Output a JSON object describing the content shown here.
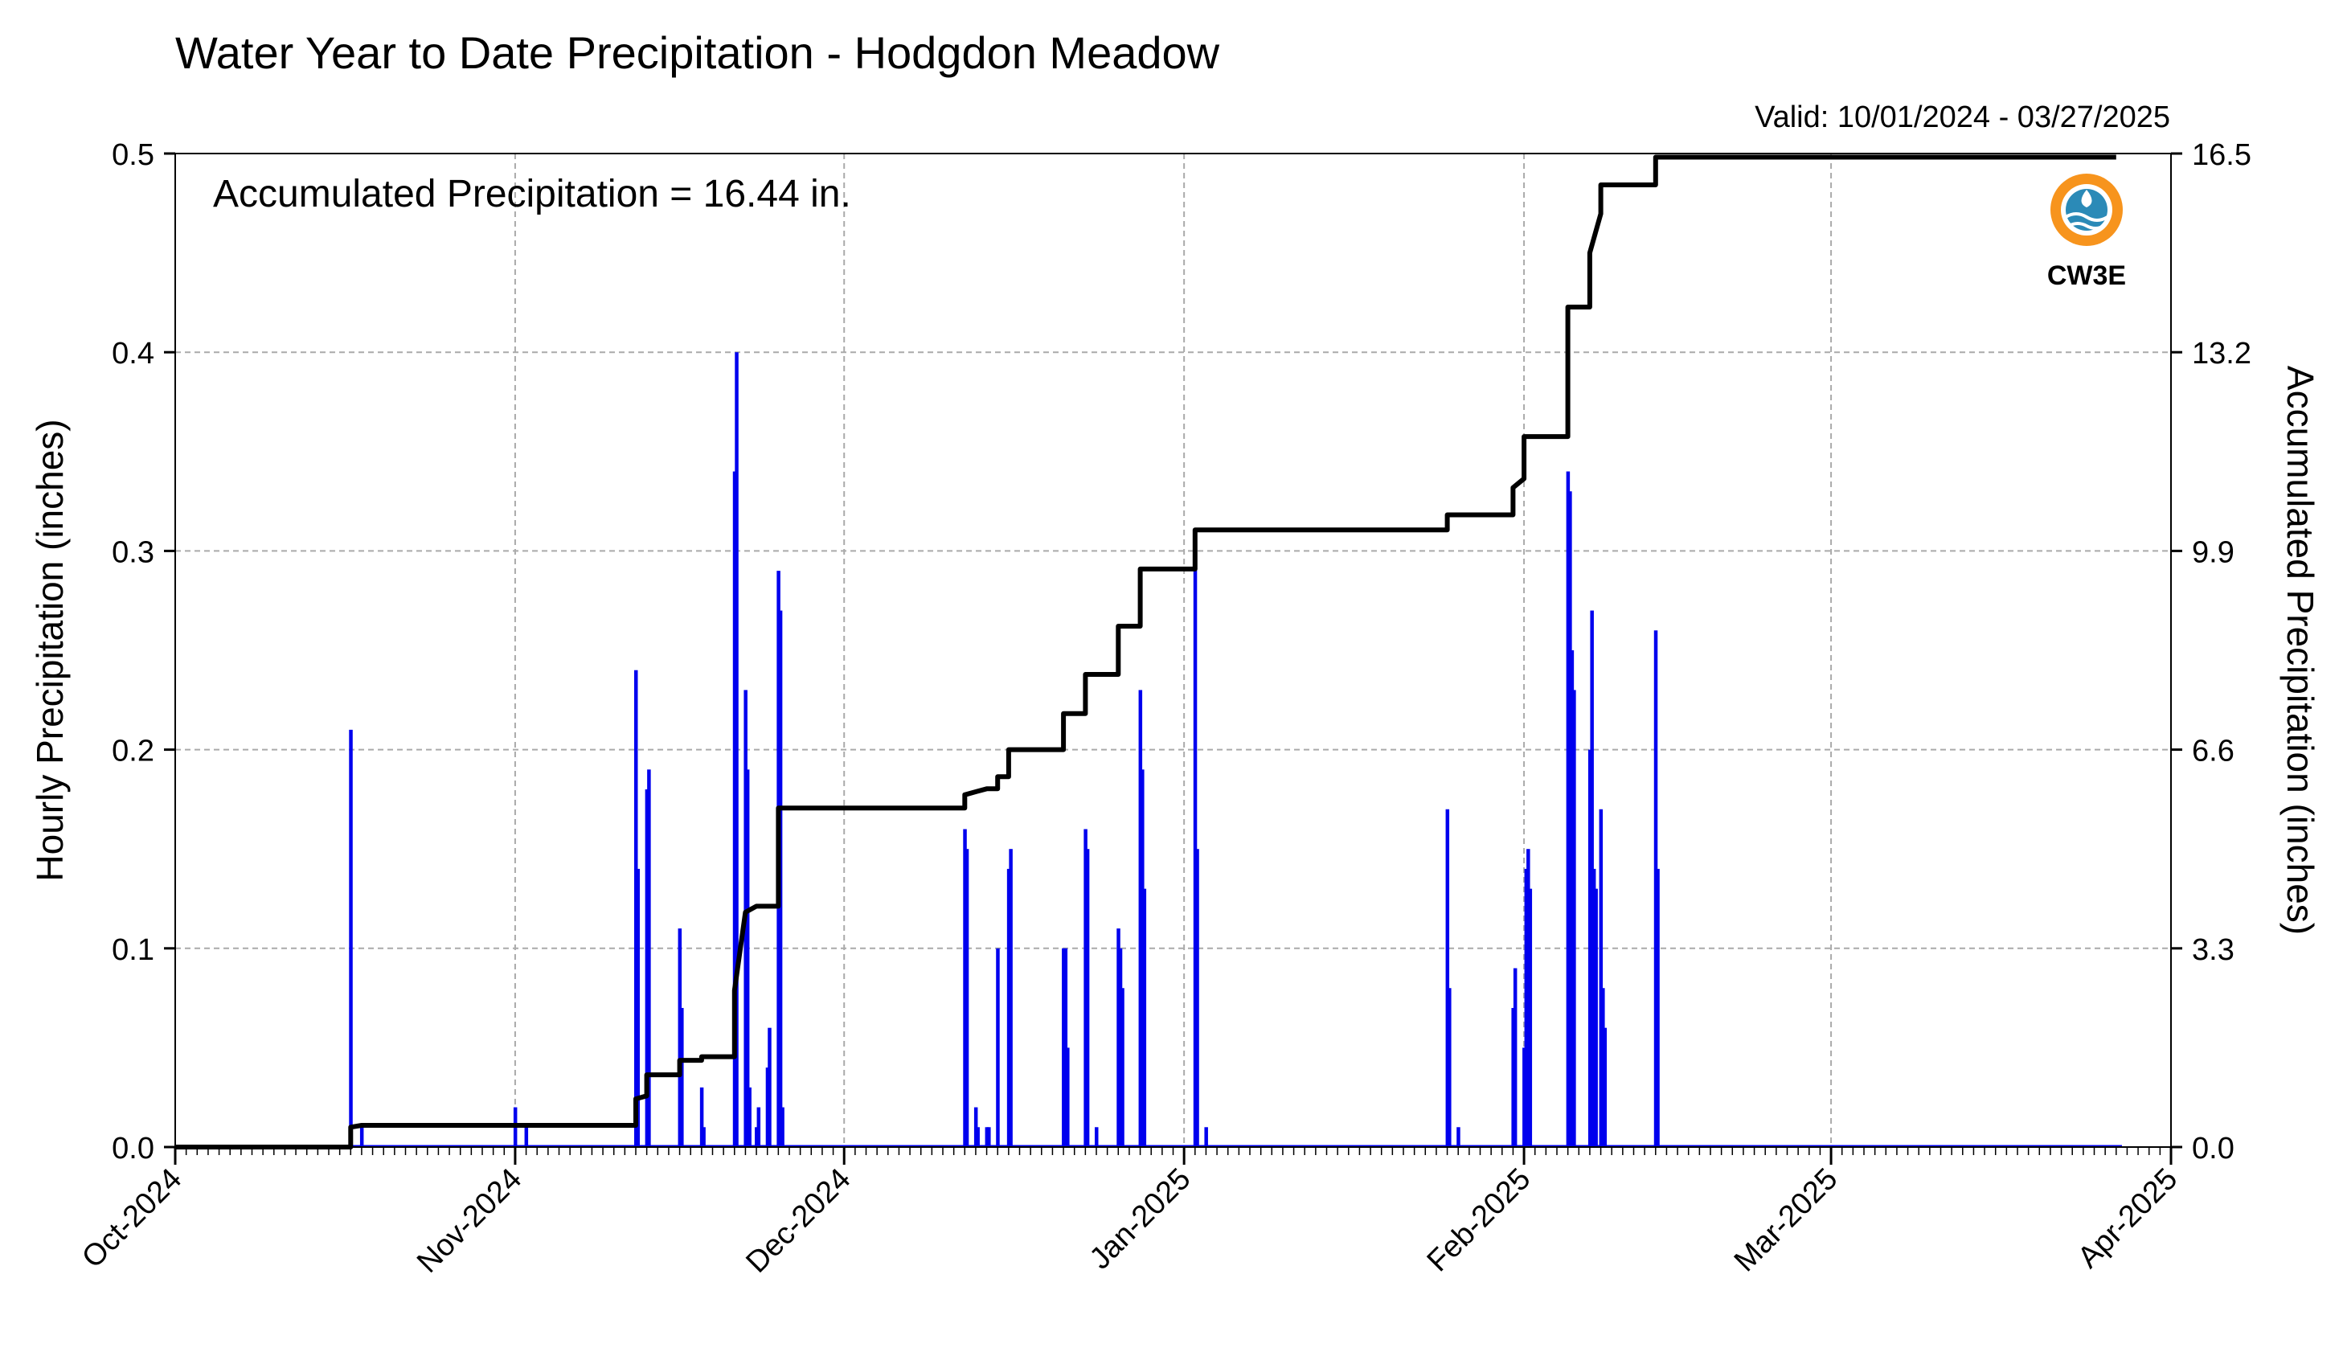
{
  "chart_data": {
    "type": "bar",
    "title": "Water Year to Date Precipitation - Hodgdon Meadow",
    "valid_text": "Valid: 10/01/2024 - 03/27/2025",
    "annotation": "Accumulated Precipitation = 16.44 in.",
    "logo_text": "CW3E",
    "ylabel_left": "Hourly Precipitation (inches)",
    "ylabel_right": "Accumulated Precipitation (inches)",
    "x_range": [
      "2024-10-01",
      "2025-04-01"
    ],
    "ylim_left": [
      0,
      0.5
    ],
    "ylim_right": [
      0,
      16.5
    ],
    "x_tick_labels": [
      "Oct-2024",
      "Nov-2024",
      "Dec-2024",
      "Jan-2025",
      "Feb-2025",
      "Mar-2025",
      "Apr-2025"
    ],
    "y_left_tick_labels": [
      "0.0",
      "0.1",
      "0.2",
      "0.3",
      "0.4",
      "0.5"
    ],
    "y_right_tick_labels": [
      "0.0",
      "3.3",
      "6.6",
      "9.9",
      "13.2",
      "16.5"
    ],
    "grid": true,
    "colors": {
      "hourly": "#0000ee",
      "accumulated": "#000000",
      "logo_orange": "#f7941d",
      "logo_blue": "#2b8ab7"
    },
    "series": [
      {
        "name": "Hourly Precipitation",
        "kind": "bars",
        "points": [
          [
            "2024-10-17",
            0.21
          ],
          [
            "2024-10-18",
            0.01
          ],
          [
            "2024-11-01",
            0.02
          ],
          [
            "2024-11-02",
            0.01
          ],
          [
            "2024-11-12",
            0.24
          ],
          [
            "2024-11-12",
            0.14
          ],
          [
            "2024-11-13",
            0.18
          ],
          [
            "2024-11-13",
            0.19
          ],
          [
            "2024-11-16",
            0.11
          ],
          [
            "2024-11-16",
            0.07
          ],
          [
            "2024-11-18",
            0.03
          ],
          [
            "2024-11-18",
            0.01
          ],
          [
            "2024-11-21",
            0.34
          ],
          [
            "2024-11-21",
            0.4
          ],
          [
            "2024-11-22",
            0.23
          ],
          [
            "2024-11-22",
            0.19
          ],
          [
            "2024-11-22",
            0.03
          ],
          [
            "2024-11-23",
            0.01
          ],
          [
            "2024-11-23",
            0.02
          ],
          [
            "2024-11-24",
            0.04
          ],
          [
            "2024-11-24",
            0.06
          ],
          [
            "2024-11-25",
            0.29
          ],
          [
            "2024-11-25",
            0.27
          ],
          [
            "2024-11-25",
            0.02
          ],
          [
            "2024-12-12",
            0.16
          ],
          [
            "2024-12-12",
            0.15
          ],
          [
            "2024-12-13",
            0.02
          ],
          [
            "2024-12-13",
            0.01
          ],
          [
            "2024-12-14",
            0.01
          ],
          [
            "2024-12-14",
            0.01
          ],
          [
            "2024-12-15",
            0.1
          ],
          [
            "2024-12-16",
            0.14
          ],
          [
            "2024-12-16",
            0.15
          ],
          [
            "2024-12-21",
            0.1
          ],
          [
            "2024-12-21",
            0.1
          ],
          [
            "2024-12-21",
            0.05
          ],
          [
            "2024-12-23",
            0.16
          ],
          [
            "2024-12-23",
            0.15
          ],
          [
            "2024-12-24",
            0.01
          ],
          [
            "2024-12-26",
            0.11
          ],
          [
            "2024-12-26",
            0.1
          ],
          [
            "2024-12-26",
            0.08
          ],
          [
            "2024-12-28",
            0.23
          ],
          [
            "2024-12-28",
            0.19
          ],
          [
            "2024-12-28",
            0.13
          ],
          [
            "2025-01-02",
            0.31
          ],
          [
            "2025-01-02",
            0.15
          ],
          [
            "2025-01-03",
            0.01
          ],
          [
            "2025-01-25",
            0.17
          ],
          [
            "2025-01-25",
            0.08
          ],
          [
            "2025-01-26",
            0.01
          ],
          [
            "2025-01-31",
            0.07
          ],
          [
            "2025-01-31",
            0.09
          ],
          [
            "2025-02-01",
            0.05
          ],
          [
            "2025-02-01",
            0.14
          ],
          [
            "2025-02-01",
            0.15
          ],
          [
            "2025-02-01",
            0.13
          ],
          [
            "2025-02-05",
            0.34
          ],
          [
            "2025-02-05",
            0.33
          ],
          [
            "2025-02-05",
            0.25
          ],
          [
            "2025-02-05",
            0.23
          ],
          [
            "2025-02-07",
            0.2
          ],
          [
            "2025-02-07",
            0.27
          ],
          [
            "2025-02-07",
            0.14
          ],
          [
            "2025-02-07",
            0.13
          ],
          [
            "2025-02-08",
            0.17
          ],
          [
            "2025-02-08",
            0.08
          ],
          [
            "2025-02-08",
            0.06
          ],
          [
            "2025-02-13",
            0.26
          ],
          [
            "2025-02-13",
            0.14
          ]
        ]
      },
      {
        "name": "Accumulated Precipitation",
        "kind": "step",
        "points": [
          [
            "2024-10-01",
            0.0
          ],
          [
            "2024-10-17",
            0.0
          ],
          [
            "2024-10-17",
            0.33
          ],
          [
            "2024-10-18",
            0.36
          ],
          [
            "2024-11-12",
            0.36
          ],
          [
            "2024-11-12",
            0.8
          ],
          [
            "2024-11-13",
            0.85
          ],
          [
            "2024-11-13",
            1.2
          ],
          [
            "2024-11-16",
            1.2
          ],
          [
            "2024-11-16",
            1.44
          ],
          [
            "2024-11-18",
            1.44
          ],
          [
            "2024-11-18",
            1.5
          ],
          [
            "2024-11-21",
            1.5
          ],
          [
            "2024-11-21",
            2.6
          ],
          [
            "2024-11-22",
            3.9
          ],
          [
            "2024-11-23",
            4.0
          ],
          [
            "2024-11-25",
            4.0
          ],
          [
            "2024-11-25",
            4.3
          ],
          [
            "2024-11-25",
            5.63
          ],
          [
            "2024-12-12",
            5.63
          ],
          [
            "2024-12-12",
            5.85
          ],
          [
            "2024-12-13",
            5.9
          ],
          [
            "2024-12-14",
            5.95
          ],
          [
            "2024-12-15",
            5.95
          ],
          [
            "2024-12-15",
            6.15
          ],
          [
            "2024-12-16",
            6.15
          ],
          [
            "2024-12-16",
            6.6
          ],
          [
            "2024-12-21",
            6.6
          ],
          [
            "2024-12-21",
            7.2
          ],
          [
            "2024-12-23",
            7.2
          ],
          [
            "2024-12-23",
            7.85
          ],
          [
            "2024-12-26",
            7.85
          ],
          [
            "2024-12-26",
            8.65
          ],
          [
            "2024-12-28",
            8.65
          ],
          [
            "2024-12-28",
            9.6
          ],
          [
            "2025-01-02",
            9.6
          ],
          [
            "2025-01-02",
            10.25
          ],
          [
            "2025-01-25",
            10.25
          ],
          [
            "2025-01-25",
            10.5
          ],
          [
            "2025-01-31",
            10.5
          ],
          [
            "2025-01-31",
            10.95
          ],
          [
            "2025-02-01",
            11.1
          ],
          [
            "2025-02-01",
            11.8
          ],
          [
            "2025-02-05",
            11.8
          ],
          [
            "2025-02-05",
            13.95
          ],
          [
            "2025-02-07",
            13.95
          ],
          [
            "2025-02-07",
            14.85
          ],
          [
            "2025-02-08",
            15.5
          ],
          [
            "2025-02-08",
            15.98
          ],
          [
            "2025-02-13",
            15.98
          ],
          [
            "2025-02-13",
            16.44
          ],
          [
            "2025-03-27",
            16.44
          ]
        ]
      }
    ]
  }
}
